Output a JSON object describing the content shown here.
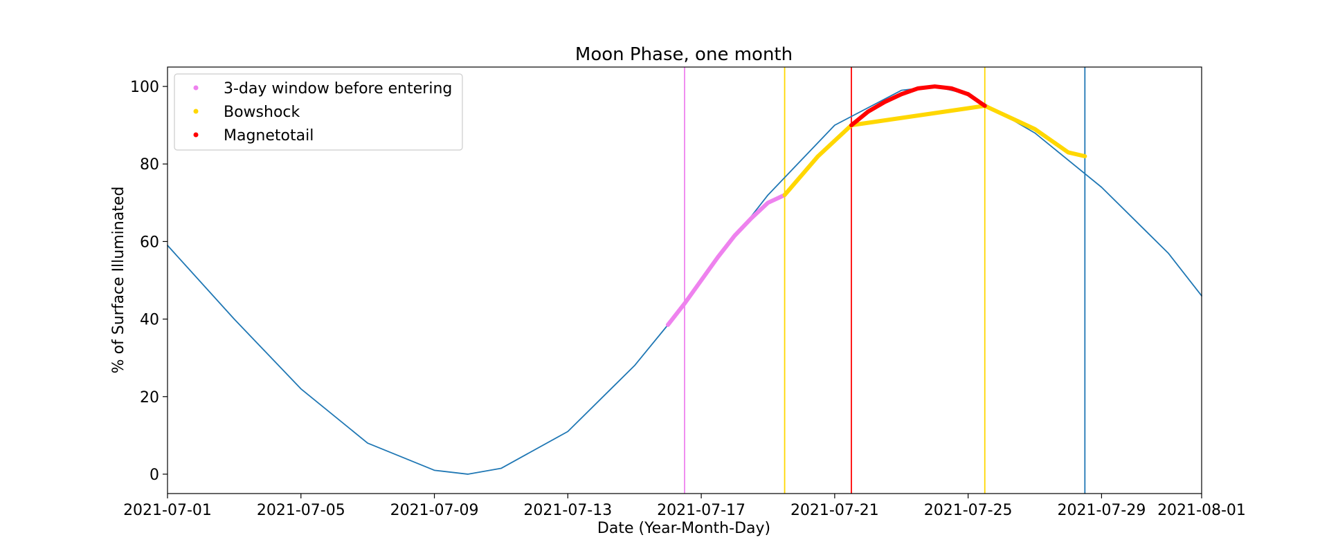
{
  "chart_data": {
    "type": "line",
    "title": "Moon Phase, one month",
    "xlabel": "Date (Year-Month-Day)",
    "ylabel": "% of Surface Illuminated",
    "x_range": [
      "2021-07-01",
      "2021-08-01"
    ],
    "xlim": [
      "2021-07-01",
      "2021-08-01"
    ],
    "ylim": [
      -5,
      105
    ],
    "x_ticks": [
      "2021-07-01",
      "2021-07-05",
      "2021-07-09",
      "2021-07-13",
      "2021-07-17",
      "2021-07-21",
      "2021-07-25",
      "2021-07-29",
      "2021-08-01"
    ],
    "y_ticks": [
      0,
      20,
      40,
      60,
      80,
      100
    ],
    "grid": false,
    "legend": {
      "position": "upper-left"
    },
    "series": [
      {
        "color": "#1f77b4",
        "x": [
          "2021-07-01",
          "2021-07-03",
          "2021-07-05",
          "2021-07-07",
          "2021-07-09",
          "2021-07-10",
          "2021-07-11",
          "2021-07-13",
          "2021-07-15",
          "2021-07-16",
          "2021-07-17",
          "2021-07-19",
          "2021-07-21",
          "2021-07-23",
          "2021-07-24",
          "2021-07-25",
          "2021-07-27",
          "2021-07-29",
          "2021-07-31",
          "2021-08-01"
        ],
        "y": [
          59,
          40,
          22,
          8,
          1,
          0,
          1.5,
          11,
          28,
          38.5,
          50,
          72,
          90,
          99,
          100,
          98,
          88,
          74,
          57,
          46
        ]
      },
      {
        "name": "3-day window before entering",
        "color": "#ee82ee",
        "marker": "dot",
        "x": [
          "2021-07-16",
          "2021-07-16 12:00",
          "2021-07-17",
          "2021-07-17 12:00",
          "2021-07-18",
          "2021-07-18 12:00",
          "2021-07-19",
          "2021-07-19 12:00"
        ],
        "y": [
          38.5,
          44,
          50,
          56,
          61.5,
          66,
          70,
          72
        ]
      },
      {
        "name": "Bowshock",
        "color": "#ffd700",
        "marker": "dot",
        "x": [
          "2021-07-19 12:00",
          "2021-07-20",
          "2021-07-20 12:00",
          "2021-07-21",
          "2021-07-21 12:00",
          "2021-07-25 12:00",
          "2021-07-26",
          "2021-07-26 12:00",
          "2021-07-27",
          "2021-07-27 12:00",
          "2021-07-28",
          "2021-07-28 12:00"
        ],
        "y": [
          72,
          77,
          82,
          86,
          90,
          95,
          93,
          91,
          89,
          86,
          83,
          82
        ]
      },
      {
        "name": "Magnetotail",
        "color": "#ff0000",
        "marker": "dot",
        "x": [
          "2021-07-21 12:00",
          "2021-07-22",
          "2021-07-22 12:00",
          "2021-07-23",
          "2021-07-23 12:00",
          "2021-07-24",
          "2021-07-24 12:00",
          "2021-07-25",
          "2021-07-25 12:00"
        ],
        "y": [
          90,
          93.5,
          96,
          98,
          99.5,
          100,
          99.5,
          98,
          95
        ]
      }
    ],
    "vertical_lines": [
      {
        "x": "2021-07-16 12:00",
        "color": "#ee82ee"
      },
      {
        "x": "2021-07-19 12:00",
        "color": "#ffd700"
      },
      {
        "x": "2021-07-21 12:00",
        "color": "#ff0000"
      },
      {
        "x": "2021-07-25 12:00",
        "color": "#ffd700"
      },
      {
        "x": "2021-07-28 12:00",
        "color": "#1f77b4"
      }
    ]
  }
}
